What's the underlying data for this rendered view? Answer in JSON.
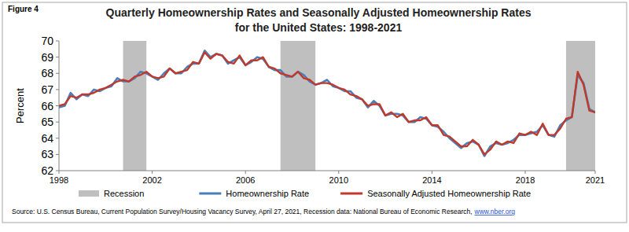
{
  "chart_data": {
    "type": "line",
    "figure_label": "Figure 4",
    "title": "Quarterly Homeownership Rates and Seasonally Adjusted Homeownership Rates",
    "subtitle": "for the United States: 1998-2021",
    "y_label": "Percent",
    "source": "Source: U.S. Census Bureau, Current Population Survey/Housing Vacancy Survey, April 27, 2021, Recession data: National Bureau of Economic Research,",
    "source_link": "www.nber.org",
    "x": [
      1998,
      1998.25,
      1998.5,
      1998.75,
      1999,
      1999.25,
      1999.5,
      1999.75,
      2000,
      2000.25,
      2000.5,
      2000.75,
      2001,
      2001.25,
      2001.5,
      2001.75,
      2002,
      2002.25,
      2002.5,
      2002.75,
      2003,
      2003.25,
      2003.5,
      2003.75,
      2004,
      2004.25,
      2004.5,
      2004.75,
      2005,
      2005.25,
      2005.5,
      2005.75,
      2006,
      2006.25,
      2006.5,
      2006.75,
      2007,
      2007.25,
      2007.5,
      2007.75,
      2008,
      2008.25,
      2008.5,
      2008.75,
      2009,
      2009.25,
      2009.5,
      2009.75,
      2010,
      2010.25,
      2010.5,
      2010.75,
      2011,
      2011.25,
      2011.5,
      2011.75,
      2012,
      2012.25,
      2012.5,
      2012.75,
      2013,
      2013.25,
      2013.5,
      2013.75,
      2014,
      2014.25,
      2014.5,
      2014.75,
      2015,
      2015.25,
      2015.5,
      2015.75,
      2016,
      2016.25,
      2016.5,
      2016.75,
      2017,
      2017.25,
      2017.5,
      2017.75,
      2018,
      2018.25,
      2018.5,
      2018.75,
      2019,
      2019.25,
      2019.5,
      2019.75,
      2020,
      2020.25,
      2020.5,
      2020.75,
      2021
    ],
    "series": [
      {
        "name": "Homeownership Rate",
        "color": "#4a7ebb",
        "values": [
          65.9,
          66.0,
          66.8,
          66.4,
          66.7,
          66.6,
          67.0,
          66.9,
          67.1,
          67.2,
          67.7,
          67.5,
          67.5,
          67.7,
          68.1,
          68.0,
          67.8,
          67.6,
          68.0,
          68.3,
          68.0,
          68.0,
          68.4,
          68.6,
          68.6,
          69.4,
          69.0,
          69.2,
          69.1,
          68.6,
          68.8,
          69.0,
          68.5,
          68.7,
          69.0,
          68.9,
          68.4,
          68.2,
          68.2,
          67.8,
          67.8,
          68.1,
          67.9,
          67.5,
          67.3,
          67.4,
          67.6,
          67.2,
          67.1,
          66.9,
          66.9,
          66.5,
          66.4,
          65.9,
          66.3,
          66.0,
          65.4,
          65.5,
          65.5,
          65.4,
          65.0,
          65.0,
          65.3,
          65.2,
          64.8,
          64.7,
          64.4,
          64.0,
          63.7,
          63.4,
          63.7,
          63.8,
          63.6,
          62.9,
          63.5,
          63.7,
          63.6,
          63.7,
          63.9,
          64.2,
          64.2,
          64.3,
          64.4,
          64.8,
          64.2,
          64.1,
          64.8,
          65.1,
          65.3,
          67.9,
          67.4,
          65.8,
          65.6
        ]
      },
      {
        "name": "Seasonally Adjusted Homeownership Rate",
        "color": "#c0392b",
        "values": [
          66.0,
          66.1,
          66.6,
          66.5,
          66.7,
          66.7,
          66.8,
          67.0,
          67.1,
          67.3,
          67.5,
          67.6,
          67.5,
          67.8,
          67.9,
          68.1,
          67.8,
          67.7,
          67.8,
          68.3,
          68.0,
          68.1,
          68.2,
          68.7,
          68.6,
          69.3,
          68.9,
          69.2,
          69.1,
          68.7,
          68.6,
          69.1,
          68.5,
          68.8,
          68.8,
          69.0,
          68.4,
          68.3,
          68.0,
          67.9,
          67.8,
          68.1,
          67.7,
          67.6,
          67.3,
          67.4,
          67.4,
          67.3,
          67.1,
          67.0,
          66.7,
          66.6,
          66.4,
          66.0,
          66.1,
          66.1,
          65.4,
          65.6,
          65.3,
          65.5,
          65.0,
          65.1,
          65.1,
          65.3,
          64.8,
          64.8,
          64.2,
          64.1,
          63.8,
          63.5,
          63.5,
          63.9,
          63.6,
          63.0,
          63.3,
          63.8,
          63.6,
          63.8,
          63.7,
          64.3,
          64.2,
          64.4,
          64.2,
          64.9,
          64.2,
          64.2,
          64.6,
          65.2,
          65.3,
          68.1,
          67.3,
          65.7,
          65.6
        ]
      }
    ],
    "recession": {
      "name": "Recession",
      "color": "#bfbfbf",
      "ranges": [
        [
          2000.75,
          2001.75
        ],
        [
          2007.5,
          2009.0
        ],
        [
          2019.75,
          2021
        ]
      ]
    },
    "xlim": [
      1998,
      2021
    ],
    "xticks": [
      1998,
      2002,
      2006,
      2010,
      2014,
      2018,
      2021
    ],
    "ylim": [
      62,
      70
    ],
    "yticks": [
      62,
      63,
      64,
      65,
      66,
      67,
      68,
      69,
      70
    ],
    "grid": false,
    "legend": "bottom"
  }
}
